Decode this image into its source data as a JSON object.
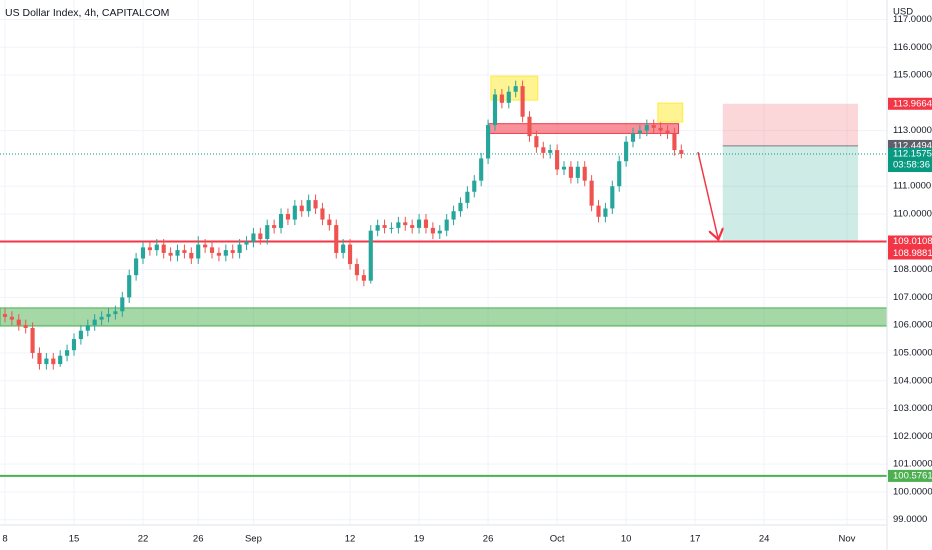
{
  "chart_data": {
    "type": "candlestick",
    "title": "US Dollar Index, 4h, CAPITALCOM",
    "currency": "USD",
    "xlim": [
      -0.36,
      63.9
    ],
    "ylim": [
      98.81,
      117.7
    ],
    "grid": true,
    "up_color": "#26a69a",
    "down_color": "#ef5350",
    "xticks": [
      {
        "value": 0,
        "label": "8"
      },
      {
        "value": 5,
        "label": "15"
      },
      {
        "value": 10,
        "label": "22"
      },
      {
        "value": 14,
        "label": "26"
      },
      {
        "value": 18,
        "label": "Sep"
      },
      {
        "value": 25,
        "label": "12"
      },
      {
        "value": 30,
        "label": "19"
      },
      {
        "value": 35,
        "label": "26"
      },
      {
        "value": 40,
        "label": "Oct"
      },
      {
        "value": 45,
        "label": "10"
      },
      {
        "value": 50,
        "label": "17"
      },
      {
        "value": 55,
        "label": "24"
      },
      {
        "value": 61,
        "label": "Nov"
      }
    ],
    "yticks": [
      {
        "value": 99,
        "label": "99.0000"
      },
      {
        "value": 100,
        "label": "100.0000"
      },
      {
        "value": 101,
        "label": "101.0000"
      },
      {
        "value": 102,
        "label": "102.0000"
      },
      {
        "value": 103,
        "label": "103.0000"
      },
      {
        "value": 104,
        "label": "104.0000"
      },
      {
        "value": 105,
        "label": "105.0000"
      },
      {
        "value": 106,
        "label": "106.0000"
      },
      {
        "value": 107,
        "label": "107.0000"
      },
      {
        "value": 108,
        "label": "108.0000"
      },
      {
        "value": 110,
        "label": "110.0000"
      },
      {
        "value": 111,
        "label": "111.0000"
      },
      {
        "value": 113,
        "label": "113.0000"
      },
      {
        "value": 115,
        "label": "115.0000"
      },
      {
        "value": 116,
        "label": "116.0000"
      },
      {
        "value": 117,
        "label": "117.0000"
      }
    ],
    "x": [
      0,
      0.5,
      1,
      1.5,
      2,
      2.5,
      3,
      3.5,
      4,
      4.5,
      5,
      5.5,
      6,
      6.5,
      7,
      7.5,
      8,
      8.5,
      9,
      9.5,
      10,
      10.5,
      11,
      11.5,
      12,
      12.5,
      13,
      13.5,
      14,
      14.5,
      15,
      15.5,
      16,
      16.5,
      17,
      17.5,
      18,
      18.5,
      19,
      19.5,
      20,
      20.5,
      21,
      21.5,
      22,
      22.5,
      23,
      23.5,
      24,
      24.5,
      25,
      25.5,
      26,
      26.5,
      27,
      27.5,
      28,
      28.5,
      29,
      29.5,
      30,
      30.5,
      31,
      31.5,
      32,
      32.5,
      33,
      33.5,
      34,
      34.5,
      35,
      35.5,
      36,
      36.5,
      37,
      37.5,
      38,
      38.5,
      39,
      39.5,
      40,
      40.5,
      41,
      41.5,
      42,
      42.5,
      43,
      43.5,
      44,
      44.5,
      45,
      45.5,
      46,
      46.5,
      47,
      47.5,
      48,
      48.5,
      49
    ],
    "open": [
      106.4,
      106.3,
      106.2,
      106.0,
      105.9,
      105.0,
      104.6,
      104.8,
      104.6,
      104.9,
      105.1,
      105.5,
      105.8,
      106.0,
      106.2,
      106.3,
      106.4,
      106.5,
      107.0,
      107.8,
      108.4,
      108.8,
      108.7,
      108.9,
      108.6,
      108.5,
      108.7,
      108.6,
      108.4,
      108.9,
      108.8,
      108.6,
      108.5,
      108.7,
      108.6,
      108.9,
      109.0,
      109.3,
      109.1,
      109.6,
      109.5,
      110.0,
      109.8,
      110.3,
      110.1,
      110.5,
      110.2,
      109.8,
      109.6,
      108.6,
      108.9,
      108.2,
      107.8,
      107.6,
      109.4,
      109.6,
      109.5,
      109.5,
      109.7,
      109.6,
      109.5,
      109.8,
      109.5,
      109.3,
      109.4,
      109.8,
      110.1,
      110.4,
      110.8,
      111.2,
      112.0,
      113.2,
      114.3,
      114.0,
      114.4,
      114.6,
      113.5,
      112.8,
      112.4,
      112.2,
      112.3,
      111.6,
      111.7,
      111.3,
      111.7,
      111.2,
      110.3,
      109.9,
      110.2,
      111.0,
      111.9,
      112.6,
      112.9,
      113.0,
      113.2,
      113.1,
      113.0,
      112.9,
      112.3
    ],
    "high": [
      106.6,
      106.5,
      106.4,
      106.2,
      106.1,
      105.2,
      105.0,
      105.0,
      105.1,
      105.3,
      105.7,
      106.0,
      106.2,
      106.4,
      106.5,
      106.6,
      106.7,
      107.2,
      108.0,
      108.6,
      109.0,
      109.0,
      109.1,
      109.1,
      108.8,
      108.9,
      108.9,
      108.8,
      109.2,
      109.1,
      109.0,
      108.8,
      108.9,
      108.9,
      109.1,
      109.2,
      109.5,
      109.5,
      109.8,
      109.8,
      110.2,
      110.2,
      110.5,
      110.5,
      110.7,
      110.7,
      110.4,
      110.0,
      109.8,
      109.1,
      109.1,
      108.4,
      108.0,
      109.6,
      109.8,
      109.8,
      109.7,
      109.9,
      109.9,
      109.8,
      110.0,
      110.0,
      109.7,
      109.6,
      110.0,
      110.3,
      110.6,
      111.0,
      111.4,
      112.2,
      113.4,
      114.5,
      114.5,
      114.6,
      114.8,
      114.8,
      113.7,
      113.0,
      112.6,
      112.5,
      112.5,
      111.9,
      111.9,
      111.9,
      111.9,
      111.4,
      110.5,
      110.4,
      111.2,
      112.1,
      112.8,
      113.1,
      113.2,
      113.4,
      113.4,
      113.3,
      113.2,
      113.1,
      112.5
    ],
    "low": [
      106.1,
      106.0,
      105.8,
      105.7,
      104.8,
      104.4,
      104.4,
      104.4,
      104.5,
      104.7,
      104.9,
      105.3,
      105.6,
      105.8,
      106.0,
      106.1,
      106.2,
      106.3,
      106.8,
      107.6,
      108.2,
      108.5,
      108.5,
      108.4,
      108.3,
      108.3,
      108.4,
      108.2,
      108.2,
      108.6,
      108.4,
      108.3,
      108.3,
      108.4,
      108.4,
      108.7,
      108.8,
      108.9,
      108.9,
      109.3,
      109.3,
      109.6,
      109.6,
      109.9,
      109.9,
      110.0,
      109.6,
      109.4,
      108.4,
      108.4,
      108.0,
      107.6,
      107.4,
      107.5,
      109.2,
      109.3,
      109.3,
      109.3,
      109.4,
      109.3,
      109.3,
      109.3,
      109.1,
      109.1,
      109.2,
      109.6,
      109.9,
      110.2,
      110.6,
      111.0,
      111.8,
      113.0,
      113.8,
      113.8,
      114.2,
      113.3,
      112.6,
      112.2,
      112.0,
      112.0,
      111.4,
      111.4,
      111.1,
      111.1,
      111.0,
      110.1,
      109.7,
      109.7,
      110.0,
      110.8,
      111.7,
      112.4,
      112.7,
      112.8,
      112.9,
      112.8,
      112.7,
      112.1,
      112.0
    ],
    "close": [
      106.3,
      106.2,
      106.0,
      105.9,
      105.0,
      104.6,
      104.8,
      104.6,
      104.9,
      105.1,
      105.5,
      105.8,
      106.0,
      106.2,
      106.3,
      106.4,
      106.5,
      107.0,
      107.8,
      108.4,
      108.8,
      108.7,
      108.9,
      108.6,
      108.5,
      108.7,
      108.6,
      108.4,
      108.9,
      108.8,
      108.6,
      108.5,
      108.7,
      108.6,
      108.9,
      109.0,
      109.3,
      109.1,
      109.6,
      109.5,
      110.0,
      109.8,
      110.3,
      110.1,
      110.5,
      110.2,
      109.8,
      109.6,
      108.6,
      108.9,
      108.2,
      107.8,
      107.6,
      109.4,
      109.6,
      109.5,
      109.5,
      109.7,
      109.6,
      109.5,
      109.8,
      109.5,
      109.3,
      109.4,
      109.8,
      110.1,
      110.4,
      110.8,
      111.2,
      112.0,
      113.2,
      114.3,
      114.0,
      114.4,
      114.6,
      113.5,
      112.8,
      112.4,
      112.2,
      112.3,
      111.6,
      111.7,
      111.3,
      111.7,
      111.2,
      110.3,
      109.9,
      110.2,
      111.0,
      111.9,
      112.6,
      112.9,
      113.0,
      113.2,
      113.1,
      113.0,
      112.9,
      112.3,
      112.16
    ],
    "zones": [
      {
        "y": [
          105.97,
          106.62
        ],
        "color": "#4caf50"
      }
    ],
    "boxes": [
      {
        "x": [
          35,
          48.8
        ],
        "y": [
          112.9,
          113.25
        ],
        "color": "#f23645"
      },
      {
        "x": [
          35.2,
          38.6
        ],
        "y": [
          114.1,
          114.96
        ],
        "color": "#ffeb3b"
      },
      {
        "x": [
          47.3,
          49.1
        ],
        "y": [
          113.31,
          113.99
        ],
        "color": "#ffeb3b"
      }
    ],
    "levels": [
      {
        "value": 109.0108,
        "color": "#f23645"
      },
      {
        "value": 100.5761,
        "color": "#4caf50"
      }
    ],
    "position": {
      "x": [
        52,
        61.8
      ],
      "entry": 112.4494,
      "stop": 113.9664,
      "target": 109.0108
    },
    "last_price": {
      "value": 112.1575,
      "countdown": "03:58:36",
      "color": "#089981"
    },
    "price_labels": [
      {
        "value": 113.9664,
        "color": "#f23645"
      },
      {
        "value": 112.4494,
        "color": "#5d606b"
      },
      {
        "value": 109.0108,
        "color": "#f23645"
      },
      {
        "value": 108.9881,
        "color": "#f23645"
      },
      {
        "value": 100.5761,
        "color": "#4caf50"
      }
    ]
  }
}
